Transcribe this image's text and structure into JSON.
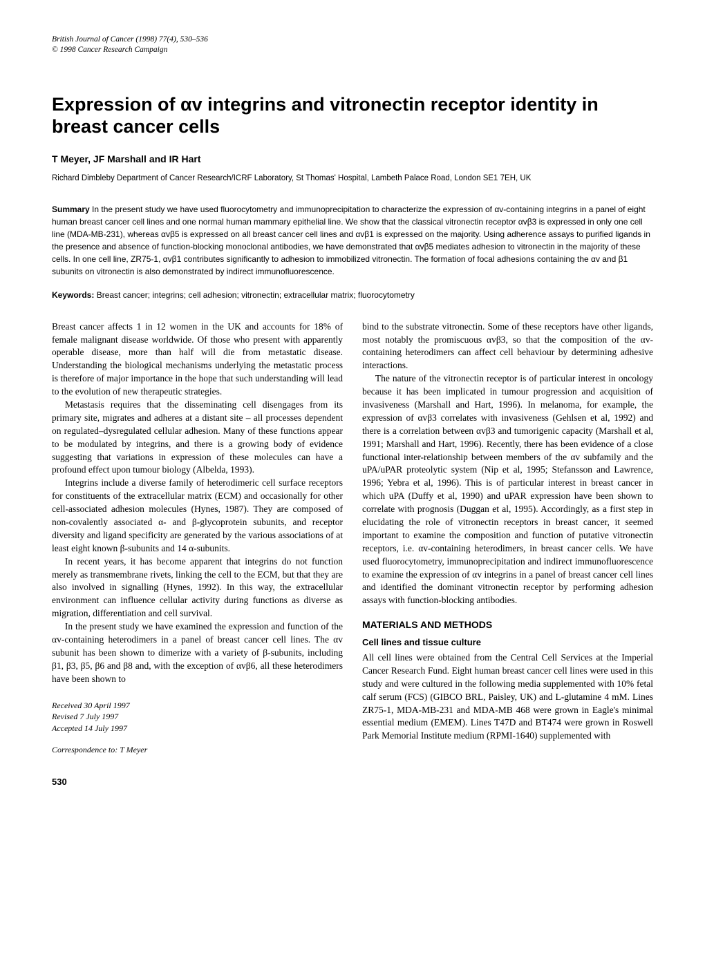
{
  "journal": {
    "citation": "British Journal of Cancer (1998) 77(4), 530–536",
    "copyright": "© 1998 Cancer Research Campaign"
  },
  "title": "Expression of αv integrins and vitronectin receptor identity in breast cancer cells",
  "authors": "T Meyer, JF Marshall and IR Hart",
  "affiliation": "Richard Dimbleby Department of Cancer Research/ICRF Laboratory, St Thomas' Hospital, Lambeth Palace Road, London SE1 7EH, UK",
  "summary_label": "Summary",
  "summary_text": " In the present study we have used fluorocytometry and immunoprecipitation to characterize the expression of αv-containing integrins in a panel of eight human breast cancer cell lines and one normal human mammary epithelial line. We show that the classical vitronectin receptor αvβ3 is expressed in only one cell line (MDA-MB-231), whereas αvβ5 is expressed on all breast cancer cell lines and αvβ1 is expressed on the majority. Using adherence assays to purified ligands in the presence and absence of function-blocking monoclonal antibodies, we have demonstrated that αvβ5 mediates adhesion to vitronectin in the majority of these cells. In one cell line, ZR75-1, αvβ1 contributes significantly to adhesion to immobilized vitronectin. The formation of focal adhesions containing the αv and β1 subunits on vitronectin is also demonstrated by indirect immunofluorescence.",
  "keywords_label": "Keywords:",
  "keywords_text": " Breast cancer; integrins; cell adhesion; vitronectin; extracellular matrix; fluorocytometry",
  "left_col": {
    "p1": "Breast cancer affects 1 in 12 women in the UK and accounts for 18% of female malignant disease worldwide. Of those who present with apparently operable disease, more than half will die from metastatic disease. Understanding the biological mechanisms underlying the metastatic process is therefore of major importance in the hope that such understanding will lead to the evolution of new therapeutic strategies.",
    "p2": "Metastasis requires that the disseminating cell disengages from its primary site, migrates and adheres at a distant site – all processes dependent on regulated–dysregulated cellular adhesion. Many of these functions appear to be modulated by integrins, and there is a growing body of evidence suggesting that variations in expression of these molecules can have a profound effect upon tumour biology (Albelda, 1993).",
    "p3": "Integrins include a diverse family of heterodimeric cell surface receptors for constituents of the extracellular matrix (ECM) and occasionally for other cell-associated adhesion molecules (Hynes, 1987). They are composed of non-covalently associated α- and β-glycoprotein subunits, and receptor diversity and ligand specificity are generated by the various associations of at least eight known β-subunits and 14 α-subunits.",
    "p4": "In recent years, it has become apparent that integrins do not function merely as transmembrane rivets, linking the cell to the ECM, but that they are also involved in signalling (Hynes, 1992). In this way, the extracellular environment can influence cellular activity during functions as diverse as migration, differentiation and cell survival.",
    "p5": "In the present study we have examined the expression and function of the αv-containing heterodimers in a panel of breast cancer cell lines. The αv subunit has been shown to dimerize with a variety of β-subunits, including β1, β3, β5, β6 and β8 and, with the exception of αvβ6, all these heterodimers have been shown to",
    "received": "Received 30 April 1997",
    "revised": "Revised 7 July 1997",
    "accepted": "Accepted 14 July 1997",
    "correspondence": "Correspondence to: T Meyer"
  },
  "right_col": {
    "p1": "bind to the substrate vitronectin. Some of these receptors have other ligands, most notably the promiscuous αvβ3, so that the composition of the αv-containing heterodimers can affect cell behaviour by determining adhesive interactions.",
    "p2": "The nature of the vitronectin receptor is of particular interest in oncology because it has been implicated in tumour progression and acquisition of invasiveness (Marshall and Hart, 1996). In melanoma, for example, the expression of αvβ3 correlates with invasiveness (Gehlsen et al, 1992) and there is a correlation between αvβ3 and tumorigenic capacity (Marshall et al, 1991; Marshall and Hart, 1996). Recently, there has been evidence of a close functional inter-relationship between members of the αv subfamily and the uPA/uPAR proteolytic system (Nip et al, 1995; Stefansson and Lawrence, 1996; Yebra et al, 1996). This is of particular interest in breast cancer in which uPA (Duffy et al, 1990) and uPAR expression have been shown to correlate with prognosis (Duggan et al, 1995). Accordingly, as a first step in elucidating the role of vitronectin receptors in breast cancer, it seemed important to examine the composition and function of putative vitronectin receptors, i.e. αv-containing heterodimers, in breast cancer cells. We have used fluorocytometry, immunoprecipitation and indirect immunofluorescence to examine the expression of αv integrins in a panel of breast cancer cell lines and identified the dominant vitronectin receptor by performing adhesion assays with function-blocking antibodies.",
    "section_heading": "MATERIALS AND METHODS",
    "subsection_heading": "Cell lines and tissue culture",
    "p3": "All cell lines were obtained from the Central Cell Services at the Imperial Cancer Research Fund. Eight human breast cancer cell lines were used in this study and were cultured in the following media supplemented with 10% fetal calf serum (FCS) (GIBCO BRL, Paisley, UK) and L-glutamine 4 mM. Lines ZR75-1, MDA-MB-231 and MDA-MB 468 were grown in Eagle's minimal essential medium (EMEM). Lines T47D and BT474 were grown in Roswell Park Memorial Institute medium (RPMI-1640) supplemented with"
  },
  "page_number": "530"
}
